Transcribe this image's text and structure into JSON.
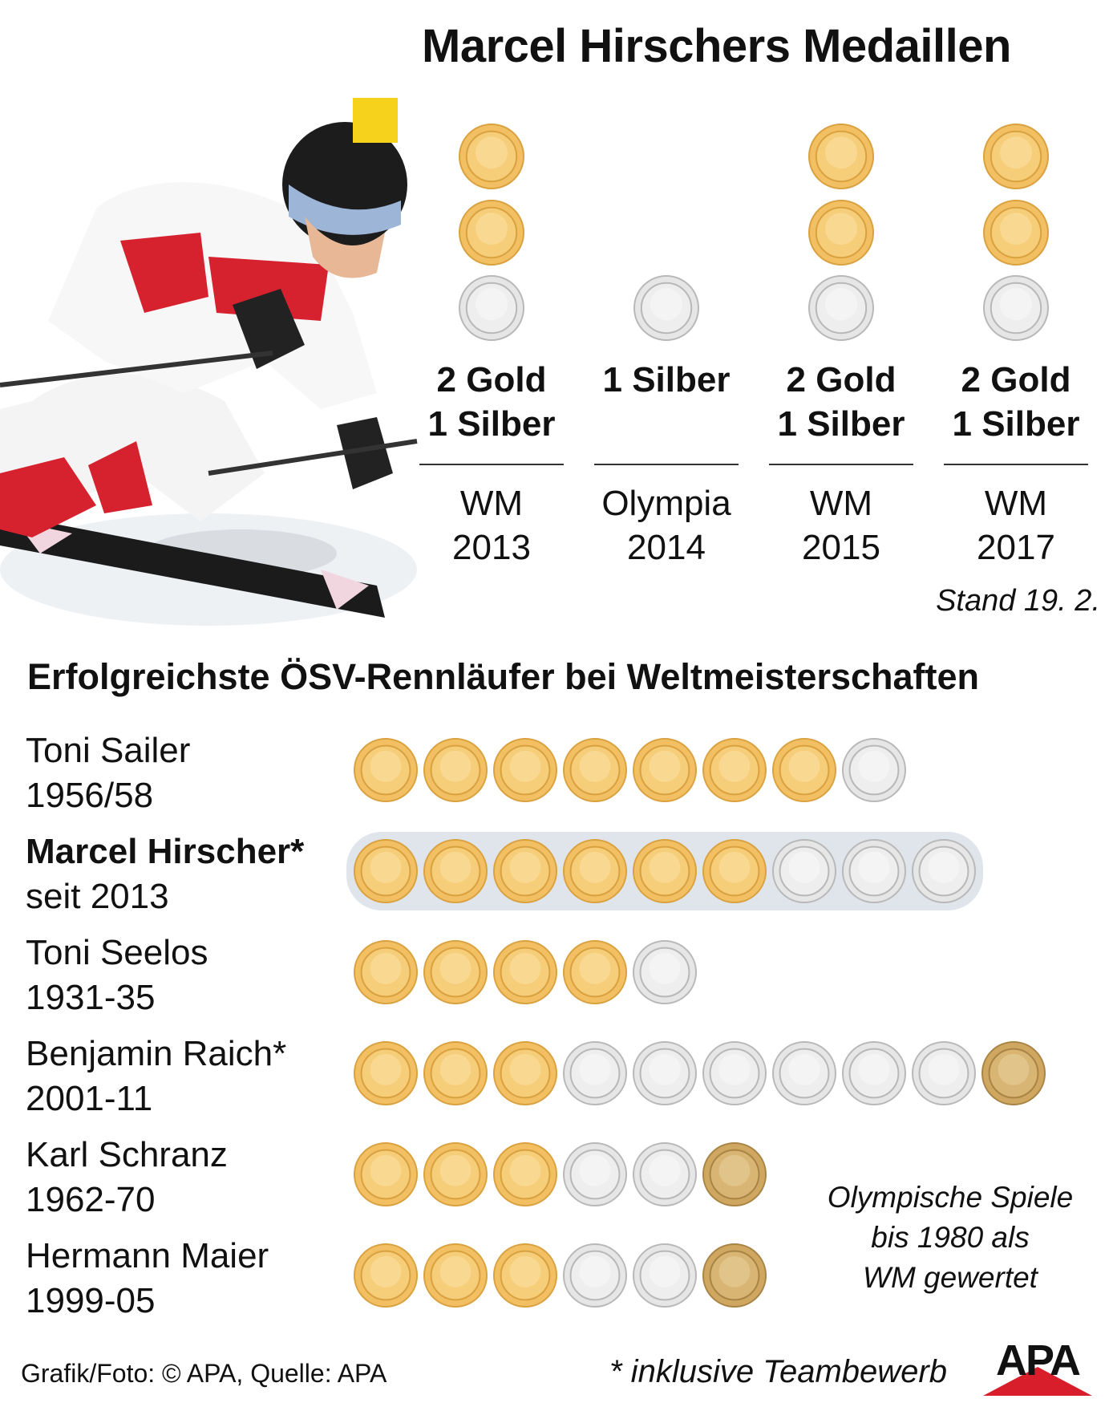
{
  "title": "Marcel Hirschers Medaillen",
  "colors": {
    "gold": "#f2c063",
    "silver": "#e6e6e6",
    "bronze": "#cfa760",
    "highlight": "#dfe5eb",
    "apa_red": "#d81e2b"
  },
  "chart_data": [
    {
      "type": "pictogram",
      "title": "Marcel Hirschers Medaillen",
      "categories": [
        "WM 2013",
        "Olympia 2014",
        "WM 2015",
        "WM 2017"
      ],
      "series": [
        {
          "name": "Gold",
          "values": [
            2,
            0,
            2,
            2
          ]
        },
        {
          "name": "Silber",
          "values": [
            1,
            1,
            1,
            1
          ]
        }
      ],
      "events": [
        {
          "summary": "2 Gold\n1 Silber",
          "label": "WM\n2013",
          "gold": 2,
          "silver": 1,
          "bronze": 0
        },
        {
          "summary": "1 Silber",
          "label": "Olympia\n2014",
          "gold": 0,
          "silver": 1,
          "bronze": 0
        },
        {
          "summary": "2 Gold\n1 Silber",
          "label": "WM\n2015",
          "gold": 2,
          "silver": 1,
          "bronze": 0
        },
        {
          "summary": "2 Gold\n1 Silber",
          "label": "WM\n2017",
          "gold": 2,
          "silver": 1,
          "bronze": 0
        }
      ],
      "stand": "Stand 19. 2."
    },
    {
      "type": "pictogram",
      "title": "Erfolgreichste ÖSV-Rennläufer bei Weltmeisterschaften",
      "categories": [
        "Toni Sailer",
        "Marcel Hirscher*",
        "Toni Seelos",
        "Benjamin Raich*",
        "Karl Schranz",
        "Hermann Maier"
      ],
      "athletes": [
        {
          "name": "Toni Sailer",
          "period": "1956/58",
          "gold": 7,
          "silver": 1,
          "bronze": 0,
          "highlight": false
        },
        {
          "name": "Marcel Hirscher*",
          "period": "seit 2013",
          "gold": 6,
          "silver": 3,
          "bronze": 0,
          "highlight": true
        },
        {
          "name": "Toni Seelos",
          "period": "1931-35",
          "gold": 4,
          "silver": 1,
          "bronze": 0,
          "highlight": false
        },
        {
          "name": "Benjamin Raich*",
          "period": "2001-11",
          "gold": 3,
          "silver": 6,
          "bronze": 1,
          "highlight": false
        },
        {
          "name": "Karl Schranz",
          "period": "1962-70",
          "gold": 3,
          "silver": 2,
          "bronze": 1,
          "highlight": false
        },
        {
          "name": "Hermann Maier",
          "period": "1999-05",
          "gold": 3,
          "silver": 2,
          "bronze": 1,
          "highlight": false
        }
      ],
      "note": "Olympische Spiele\nbis 1980 als\nWM gewertet"
    }
  ],
  "footer": {
    "credit": "Grafik/Foto: © APA, Quelle: APA",
    "note": "* inklusive Teambewerb",
    "logo": "APA"
  }
}
